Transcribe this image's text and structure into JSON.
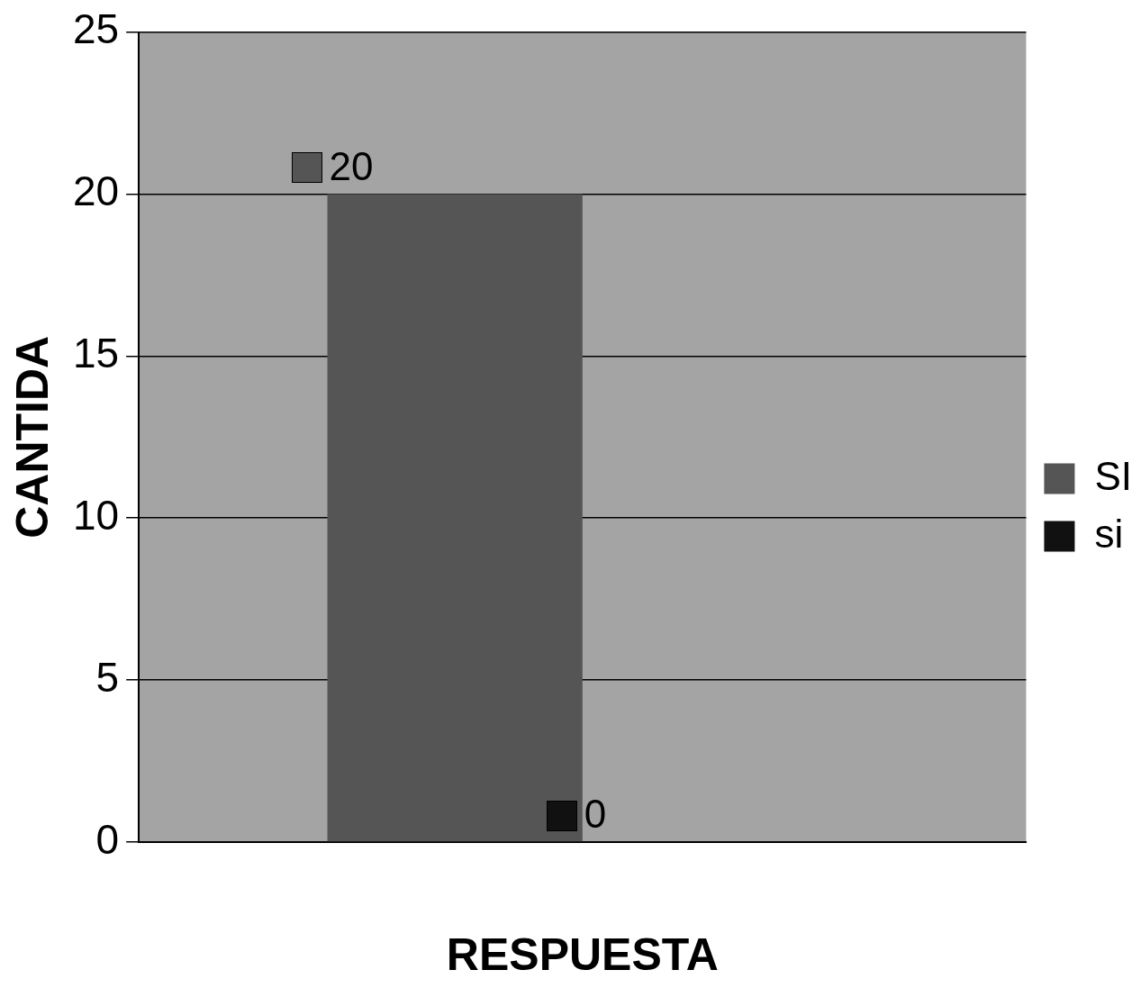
{
  "chart_data": {
    "type": "bar",
    "xlabel": "RESPUESTA",
    "ylabel": "CANTIDA",
    "categories": [
      null
    ],
    "series": [
      {
        "name": "SI",
        "color": "#555555",
        "values": [
          20
        ]
      },
      {
        "name": "si",
        "color": "#111111",
        "values": [
          0
        ]
      }
    ],
    "ylim": [
      0,
      25
    ],
    "yticks": [
      0,
      5,
      10,
      15,
      20,
      25
    ],
    "grid": "y",
    "legend": "right",
    "data_labels": true,
    "tick_labels": "y"
  }
}
